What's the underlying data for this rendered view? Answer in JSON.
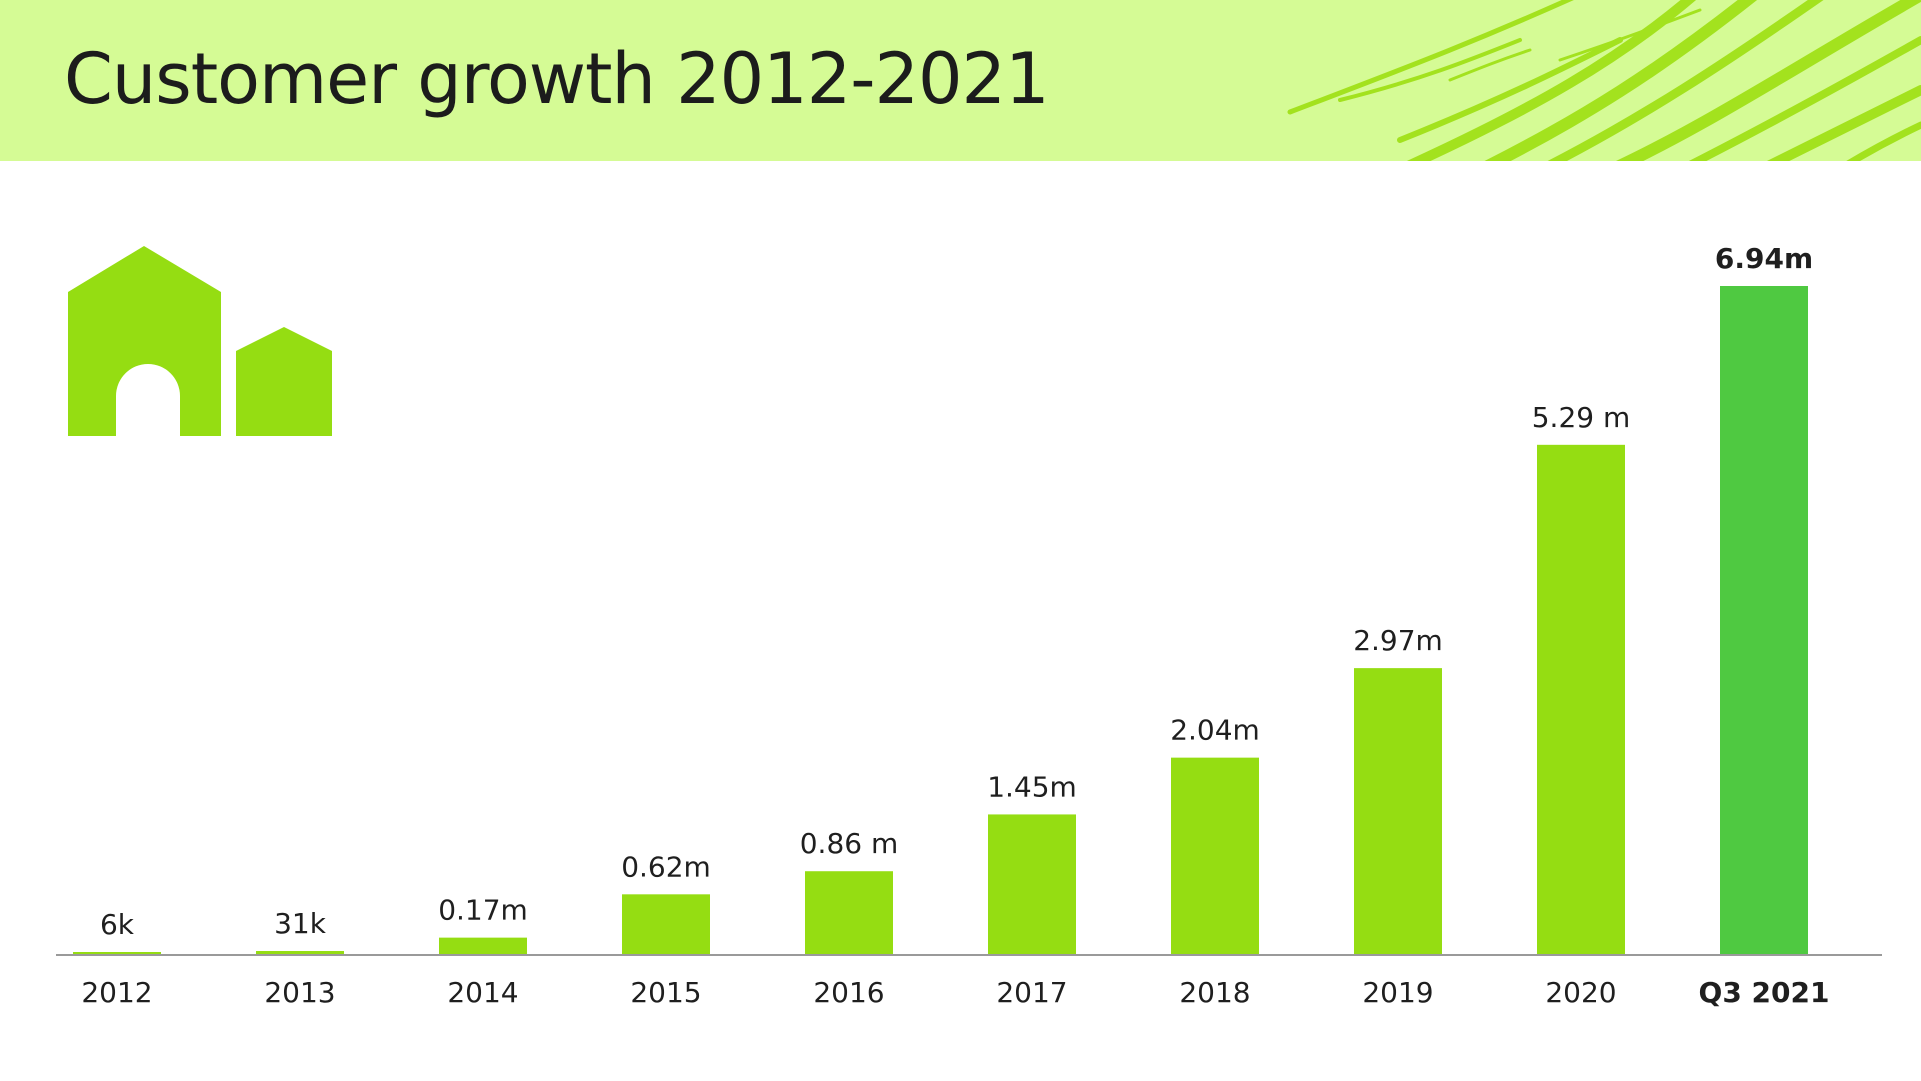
{
  "title": "Customer growth 2012-2021",
  "colors": {
    "header_bg": "#d5fb95",
    "bar": "#95dd12",
    "highlight_bar": "#4fc941",
    "icon": "#95dd12",
    "axis": "#9a9a9a",
    "text": "#1f1f1f"
  },
  "icons": [
    "house-logo-icon"
  ],
  "chart_data": {
    "type": "bar",
    "title": "",
    "xlabel": "",
    "ylabel": "",
    "ylim": [
      0,
      6.94
    ],
    "grid": false,
    "categories": [
      "2012",
      "2013",
      "2014",
      "2015",
      "2016",
      "2017",
      "2018",
      "2019",
      "2020",
      "Q3 2021"
    ],
    "values": [
      0.006,
      0.031,
      0.17,
      0.62,
      0.86,
      1.45,
      2.04,
      2.97,
      5.29,
      6.94
    ],
    "data_labels": [
      "6k",
      "31k",
      "0.17m",
      "0.62m",
      "0.86 m",
      "1.45m",
      "2.04m",
      "2.97m",
      "5.29 m",
      "6.94m"
    ],
    "highlight_index": 9
  }
}
